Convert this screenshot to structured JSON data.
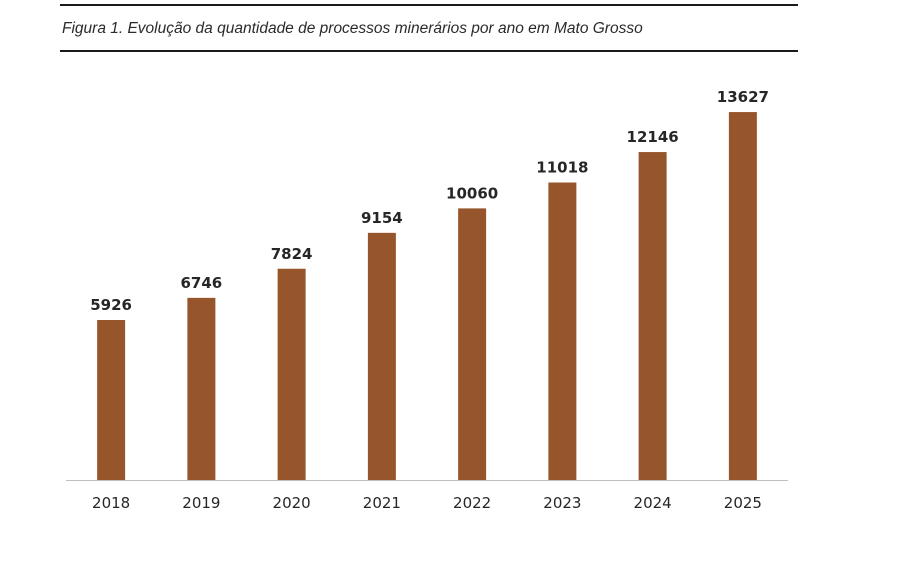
{
  "figure": {
    "caption": "Figura 1. Evolução da quantidade de processos minerários por ano em Mato Grosso"
  },
  "colors": {
    "bar": "#96552a",
    "axis": "#bfbfbf",
    "rule": "#1a1a1a"
  },
  "chart_data": {
    "type": "bar",
    "title": "",
    "xlabel": "",
    "ylabel": "",
    "categories": [
      "2018",
      "2019",
      "2020",
      "2021",
      "2022",
      "2023",
      "2024",
      "2025"
    ],
    "values": [
      5926,
      6746,
      7824,
      9154,
      10060,
      11018,
      12146,
      13627
    ],
    "data_labels": [
      "5926",
      "6746",
      "7824",
      "9154",
      "10060",
      "11018",
      "12146",
      "13627"
    ],
    "ylim": [
      0,
      14000
    ],
    "grid": false,
    "legend": "none",
    "y_axis_visible": false
  }
}
